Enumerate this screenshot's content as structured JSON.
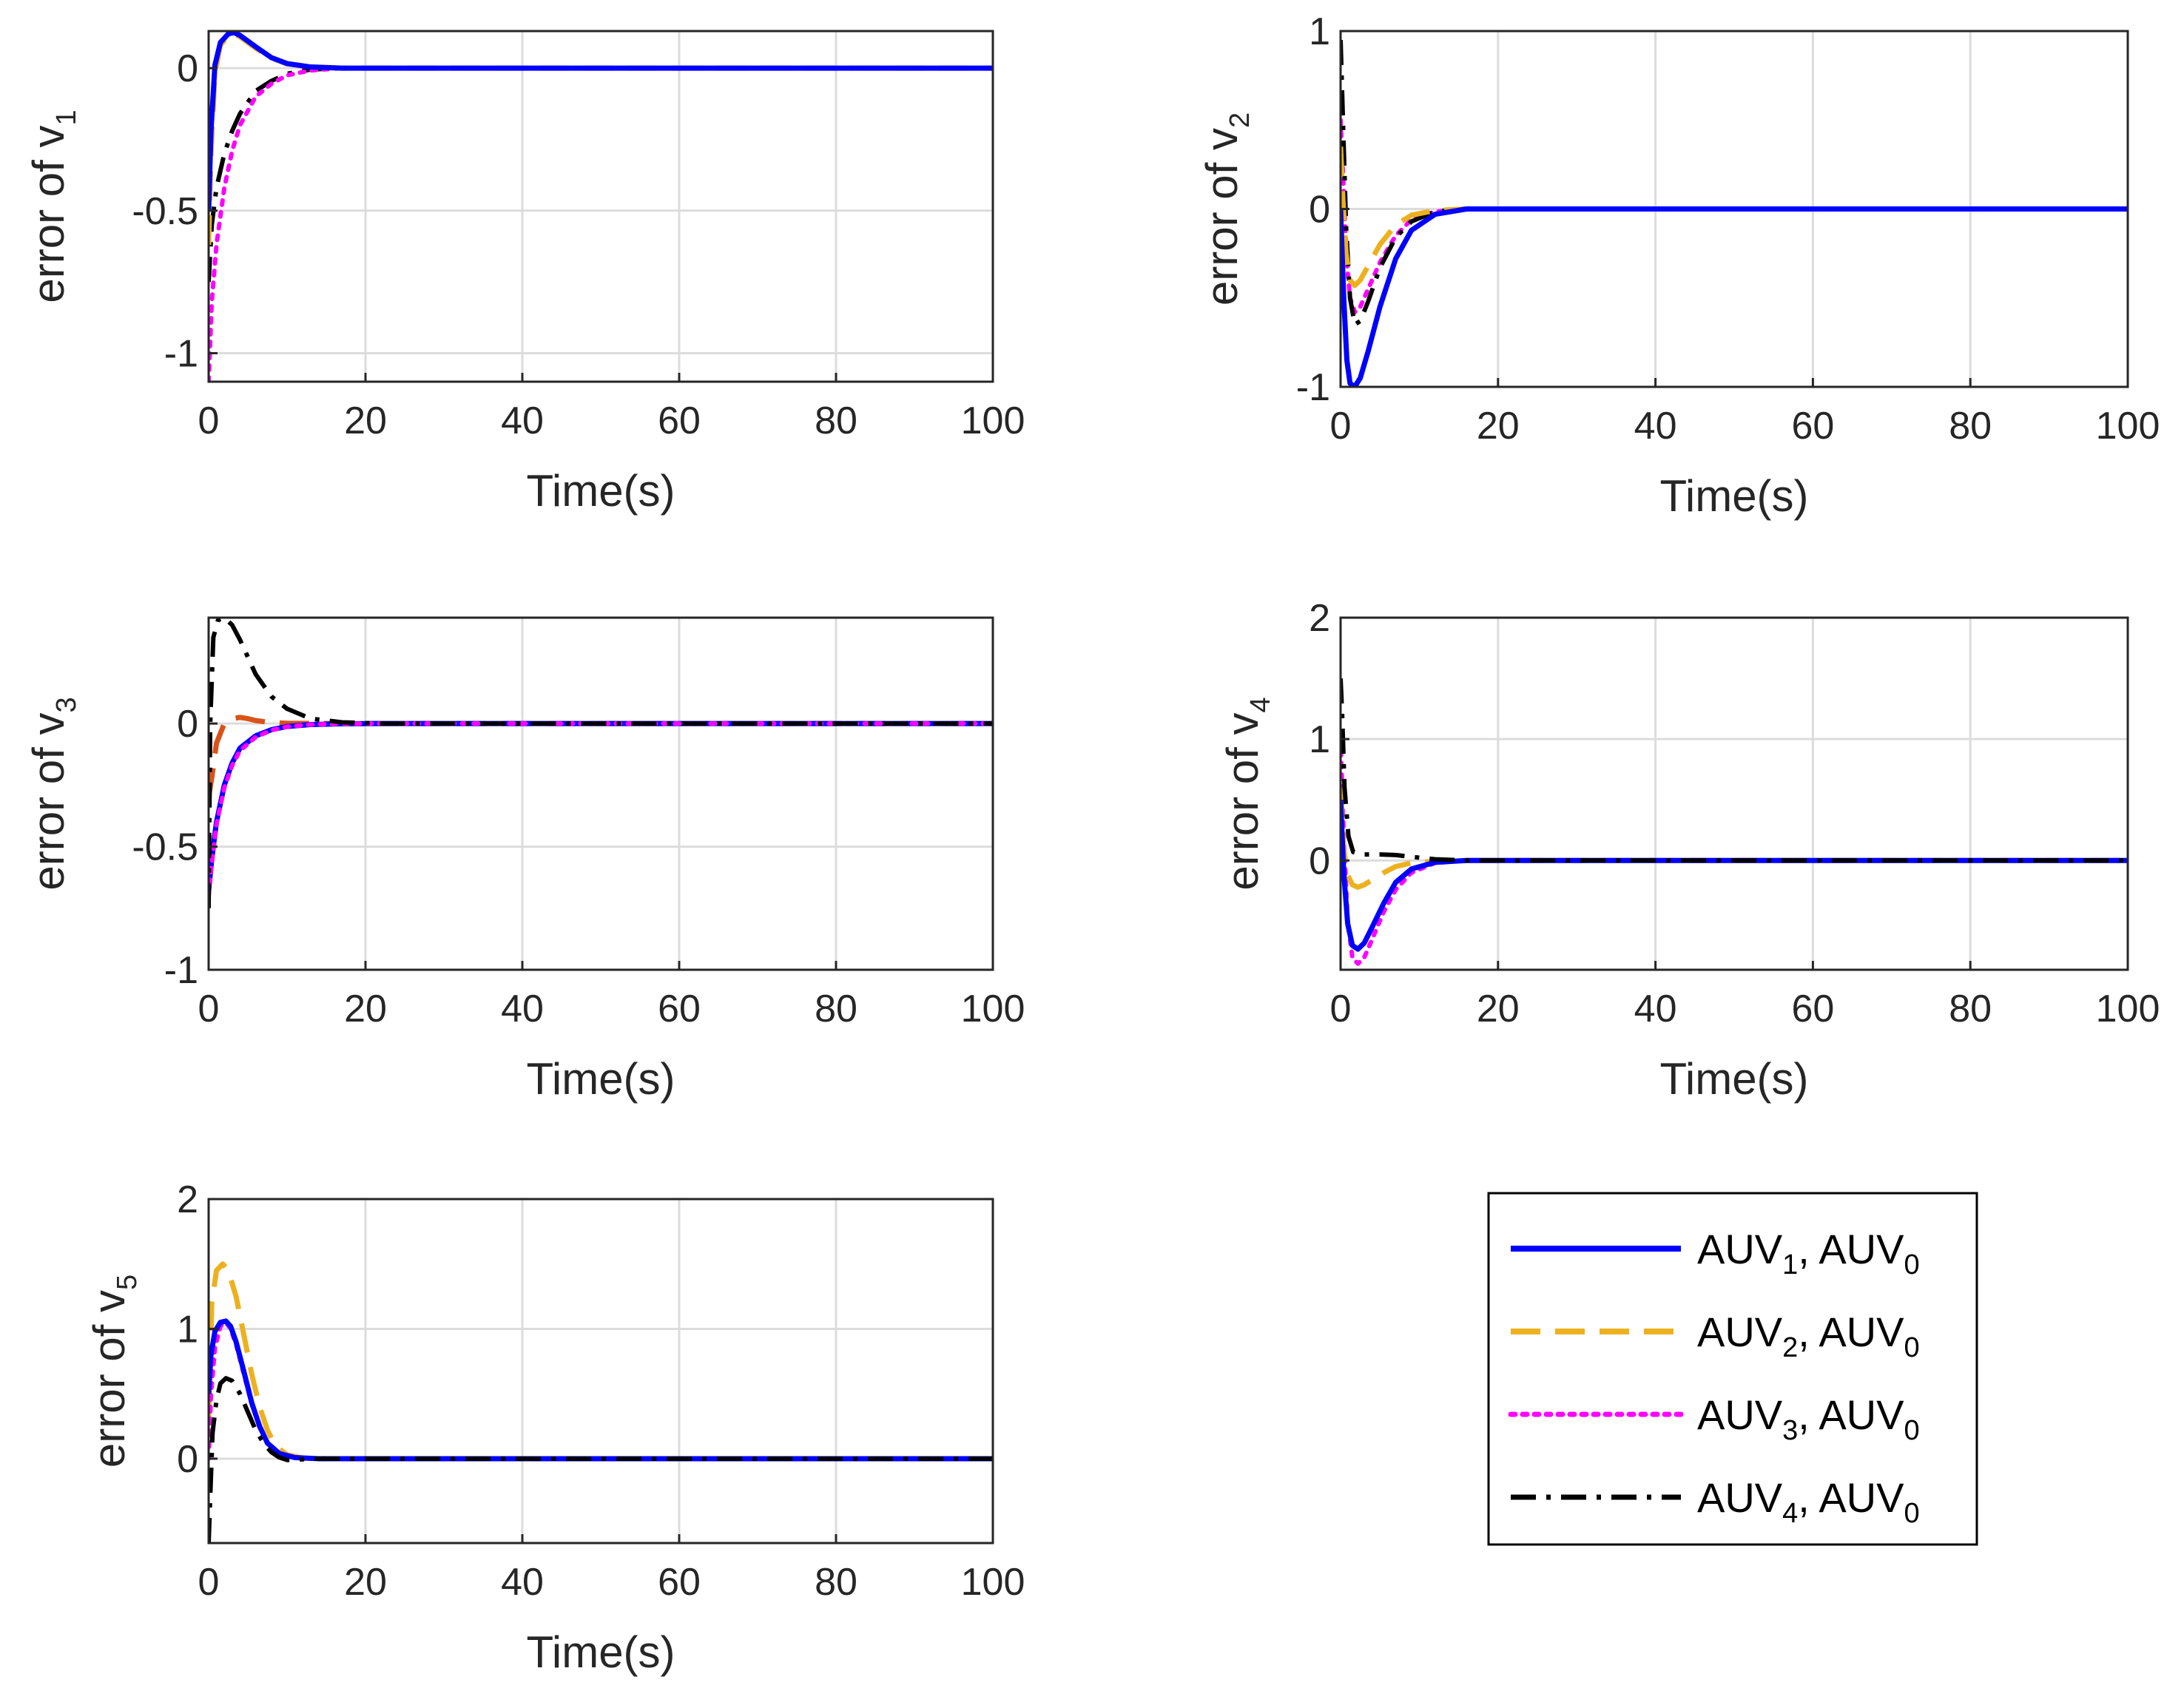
{
  "colors": {
    "AUV1": "#0000ff",
    "AUV2": "#edb120",
    "AUV3": "#ff00ff",
    "AUV4": "#000000",
    "extra": "#d95319",
    "grid": "#dcdcdc",
    "axis": "#262626"
  },
  "legend": {
    "placement": "bottom-right",
    "entries": [
      {
        "series": "AUV1",
        "style": "solid",
        "a": "AUV",
        "asub": "1",
        "b": ", AUV",
        "bsub": "0"
      },
      {
        "series": "AUV2",
        "style": "dashed",
        "a": "AUV",
        "asub": "2",
        "b": ", AUV",
        "bsub": "0"
      },
      {
        "series": "AUV3",
        "style": "dotted",
        "a": "AUV",
        "asub": "3",
        "b": ", AUV",
        "bsub": "0"
      },
      {
        "series": "AUV4",
        "style": "dashdot",
        "a": "AUV",
        "asub": "4",
        "b": ", AUV",
        "bsub": "0"
      }
    ]
  },
  "chart_data": [
    {
      "type": "line",
      "ylabel": "error of v",
      "ylabel_sub": "1",
      "xlabel": "Time(s)",
      "xlim": [
        0,
        100
      ],
      "ylim": [
        -1.1,
        0.13
      ],
      "yticks": [
        -1,
        -0.5,
        0
      ],
      "ytick_labels": [
        "-1",
        "-0.5",
        "0"
      ],
      "xticks": [
        0,
        20,
        40,
        60,
        80,
        100
      ],
      "xtick_labels": [
        "0",
        "20",
        "40",
        "60",
        "80",
        "100"
      ],
      "grid": true,
      "series": [
        {
          "key": "AUV4",
          "x": [
            0,
            0.4,
            1,
            2,
            3,
            4,
            6,
            8,
            10,
            13,
            17,
            22,
            100
          ],
          "y": [
            -0.75,
            -0.55,
            -0.42,
            -0.3,
            -0.22,
            -0.16,
            -0.08,
            -0.045,
            -0.02,
            -0.005,
            0,
            0,
            0
          ]
        },
        {
          "key": "AUV3",
          "x": [
            0,
            0.4,
            1,
            2,
            3,
            4,
            6,
            8,
            10,
            13,
            17,
            22,
            100
          ],
          "y": [
            -1.1,
            -0.82,
            -0.62,
            -0.42,
            -0.29,
            -0.2,
            -0.1,
            -0.055,
            -0.025,
            -0.008,
            0,
            0,
            0
          ]
        },
        {
          "key": "AUV2",
          "x": [
            0,
            0.3,
            0.8,
            1.5,
            2.5,
            3.2,
            4,
            6,
            8,
            10,
            13,
            17,
            100
          ],
          "y": [
            -0.62,
            -0.3,
            -0.02,
            0.08,
            0.115,
            0.12,
            0.11,
            0.07,
            0.035,
            0.015,
            0.004,
            0,
            0
          ]
        },
        {
          "key": "AUV1",
          "x": [
            0,
            0.3,
            0.8,
            1.5,
            2.5,
            3.2,
            4,
            6,
            8,
            10,
            13,
            17,
            100
          ],
          "y": [
            -0.5,
            -0.22,
            0.01,
            0.09,
            0.12,
            0.125,
            0.115,
            0.075,
            0.037,
            0.016,
            0.004,
            0,
            0
          ]
        }
      ]
    },
    {
      "type": "line",
      "ylabel": "error of v",
      "ylabel_sub": "2",
      "xlabel": "Time(s)",
      "xlim": [
        0,
        100
      ],
      "ylim": [
        -1,
        1
      ],
      "yticks": [
        -1,
        0,
        1
      ],
      "ytick_labels": [
        "-1",
        "0",
        "1"
      ],
      "xticks": [
        0,
        20,
        40,
        60,
        80,
        100
      ],
      "xtick_labels": [
        "0",
        "20",
        "40",
        "60",
        "80",
        "100"
      ],
      "grid": true,
      "series": [
        {
          "key": "AUV3",
          "x": [
            0,
            0.4,
            0.8,
            1.2,
            1.8,
            2.5,
            3.5,
            5,
            7,
            9,
            12,
            16,
            100
          ],
          "y": [
            0.5,
            0.1,
            -0.3,
            -0.5,
            -0.58,
            -0.55,
            -0.45,
            -0.3,
            -0.15,
            -0.06,
            -0.015,
            0,
            0
          ]
        },
        {
          "key": "AUV4",
          "x": [
            0,
            0.3,
            0.7,
            1.2,
            1.8,
            2.5,
            3.5,
            5,
            7,
            9,
            12,
            16,
            100
          ],
          "y": [
            0.95,
            0.5,
            -0.1,
            -0.5,
            -0.65,
            -0.63,
            -0.52,
            -0.33,
            -0.16,
            -0.07,
            -0.015,
            0,
            0
          ]
        },
        {
          "key": "AUV2",
          "x": [
            0,
            0.3,
            0.7,
            1.2,
            1.8,
            2.5,
            3.5,
            5,
            7,
            9,
            12,
            16,
            100
          ],
          "y": [
            0.35,
            0.05,
            -0.25,
            -0.4,
            -0.43,
            -0.4,
            -0.32,
            -0.2,
            -0.09,
            -0.035,
            -0.008,
            0,
            0
          ]
        },
        {
          "key": "AUV1",
          "x": [
            0,
            0.4,
            0.8,
            1.2,
            1.8,
            2.5,
            3.5,
            5,
            7,
            9,
            12,
            16,
            100
          ],
          "y": [
            0,
            -0.5,
            -0.85,
            -0.98,
            -1,
            -0.95,
            -0.8,
            -0.55,
            -0.28,
            -0.12,
            -0.03,
            0,
            0
          ]
        }
      ]
    },
    {
      "type": "line",
      "ylabel": "error of v",
      "ylabel_sub": "3",
      "xlabel": "Time(s)",
      "xlim": [
        0,
        100
      ],
      "ylim": [
        -1,
        0.43
      ],
      "yticks": [
        -1,
        -0.5,
        0
      ],
      "ytick_labels": [
        "-1",
        "-0.5",
        "0"
      ],
      "xticks": [
        0,
        20,
        40,
        60,
        80,
        100
      ],
      "xtick_labels": [
        "0",
        "20",
        "40",
        "60",
        "80",
        "100"
      ],
      "grid": true,
      "series": [
        {
          "key": "extra",
          "style": "dashed",
          "x": [
            0,
            0.4,
            1,
            2,
            3,
            4,
            5,
            6,
            8,
            10,
            14,
            100
          ],
          "y": [
            -0.3,
            -0.22,
            -0.08,
            0,
            0.02,
            0.025,
            0.02,
            0.012,
            0.004,
            0.001,
            0,
            0
          ]
        },
        {
          "key": "AUV1",
          "x": [
            0,
            0.4,
            1,
            2,
            3,
            4,
            6,
            8,
            10,
            13,
            17,
            22,
            100
          ],
          "y": [
            -0.68,
            -0.55,
            -0.4,
            -0.25,
            -0.16,
            -0.1,
            -0.05,
            -0.025,
            -0.012,
            -0.004,
            -0.001,
            0,
            0
          ]
        },
        {
          "key": "AUV3",
          "x": [
            0,
            0.4,
            1,
            2,
            3,
            4,
            6,
            8,
            10,
            13,
            17,
            22,
            100
          ],
          "y": [
            -0.7,
            -0.57,
            -0.41,
            -0.26,
            -0.17,
            -0.11,
            -0.055,
            -0.027,
            -0.013,
            -0.004,
            -0.001,
            0,
            0
          ]
        },
        {
          "key": "AUV4",
          "x": [
            0,
            0.2,
            0.6,
            1.2,
            2,
            3,
            4,
            5,
            6,
            8,
            10,
            13,
            17,
            22,
            100
          ],
          "y": [
            -0.75,
            0,
            0.35,
            0.42,
            0.43,
            0.4,
            0.34,
            0.27,
            0.2,
            0.11,
            0.06,
            0.02,
            0.005,
            0,
            0
          ]
        }
      ]
    },
    {
      "type": "line",
      "ylabel": "error of v",
      "ylabel_sub": "4",
      "xlabel": "Time(s)",
      "xlim": [
        0,
        100
      ],
      "ylim": [
        -0.9,
        2
      ],
      "yticks": [
        0,
        1,
        2
      ],
      "ytick_labels": [
        "0",
        "1",
        "2"
      ],
      "xticks": [
        0,
        20,
        40,
        60,
        80,
        100
      ],
      "xtick_labels": [
        "0",
        "20",
        "40",
        "60",
        "80",
        "100"
      ],
      "grid": true,
      "series": [
        {
          "key": "AUV3",
          "x": [
            0,
            0.4,
            0.9,
            1.5,
            2.2,
            3,
            4,
            5.5,
            7,
            9,
            12,
            16,
            100
          ],
          "y": [
            1,
            0.2,
            -0.5,
            -0.8,
            -0.85,
            -0.8,
            -0.65,
            -0.42,
            -0.24,
            -0.1,
            -0.02,
            0,
            0
          ]
        },
        {
          "key": "AUV2",
          "x": [
            0,
            0.4,
            0.9,
            1.5,
            2.2,
            3,
            4,
            5.5,
            7,
            9,
            12,
            16,
            100
          ],
          "y": [
            0.6,
            0.1,
            -0.12,
            -0.2,
            -0.22,
            -0.2,
            -0.16,
            -0.1,
            -0.05,
            -0.02,
            -0.005,
            0,
            0
          ]
        },
        {
          "key": "AUV1",
          "x": [
            0,
            0.4,
            0.9,
            1.5,
            2.2,
            3,
            4,
            5.5,
            7,
            9,
            12,
            16,
            100
          ],
          "y": [
            0.5,
            -0.1,
            -0.52,
            -0.7,
            -0.73,
            -0.68,
            -0.55,
            -0.35,
            -0.18,
            -0.07,
            -0.015,
            0,
            0
          ]
        },
        {
          "key": "AUV4",
          "x": [
            0,
            0.2,
            0.5,
            1,
            1.6,
            2.5,
            3.5,
            5,
            7,
            9,
            12,
            16,
            100
          ],
          "y": [
            1.5,
            1.2,
            0.6,
            0.2,
            0.07,
            0.05,
            0.05,
            0.05,
            0.045,
            0.03,
            0.01,
            0,
            0
          ]
        }
      ]
    },
    {
      "type": "line",
      "ylabel": "error of v",
      "ylabel_sub": "5",
      "xlabel": "Time(s)",
      "xlim": [
        0,
        100
      ],
      "ylim": [
        -0.65,
        2
      ],
      "yticks": [
        0,
        1,
        2
      ],
      "ytick_labels": [
        "0",
        "1",
        "2"
      ],
      "xticks": [
        0,
        20,
        40,
        60,
        80,
        100
      ],
      "xtick_labels": [
        "0",
        "20",
        "40",
        "60",
        "80",
        "100"
      ],
      "grid": true,
      "series": [
        {
          "key": "AUV2",
          "x": [
            0,
            0.4,
            1,
            1.8,
            2.5,
            3.5,
            4.5,
            5.5,
            6.5,
            7.5,
            8.5,
            10,
            12,
            15,
            100
          ],
          "y": [
            0.3,
            1.2,
            1.45,
            1.5,
            1.45,
            1.25,
            0.95,
            0.65,
            0.4,
            0.22,
            0.1,
            0.03,
            0.005,
            0,
            0
          ]
        },
        {
          "key": "AUV3",
          "x": [
            0,
            0.3,
            0.8,
            1.5,
            2.2,
            2.8,
            3.5,
            4.5,
            5.5,
            6.5,
            7.5,
            9,
            11,
            14,
            100
          ],
          "y": [
            0,
            0.5,
            0.85,
            1.02,
            1.05,
            1,
            0.88,
            0.65,
            0.42,
            0.24,
            0.12,
            0.04,
            0.008,
            0,
            0
          ]
        },
        {
          "key": "AUV1",
          "x": [
            0,
            0.3,
            0.8,
            1.5,
            2.2,
            2.8,
            3.5,
            4.5,
            5.5,
            6.5,
            7.5,
            9,
            11,
            14,
            100
          ],
          "y": [
            0.5,
            0.8,
            0.98,
            1.05,
            1.06,
            1.02,
            0.9,
            0.67,
            0.43,
            0.25,
            0.12,
            0.04,
            0.008,
            0,
            0
          ]
        },
        {
          "key": "AUV4",
          "x": [
            0,
            0.2,
            0.5,
            1,
            1.5,
            2.2,
            3,
            4,
            5,
            6,
            7,
            8,
            9,
            10,
            12,
            14,
            100
          ],
          "y": [
            -0.65,
            -0.3,
            0.2,
            0.45,
            0.58,
            0.62,
            0.6,
            0.5,
            0.36,
            0.22,
            0.12,
            0.05,
            0.01,
            -0.01,
            -0.005,
            0,
            0
          ]
        }
      ]
    }
  ]
}
